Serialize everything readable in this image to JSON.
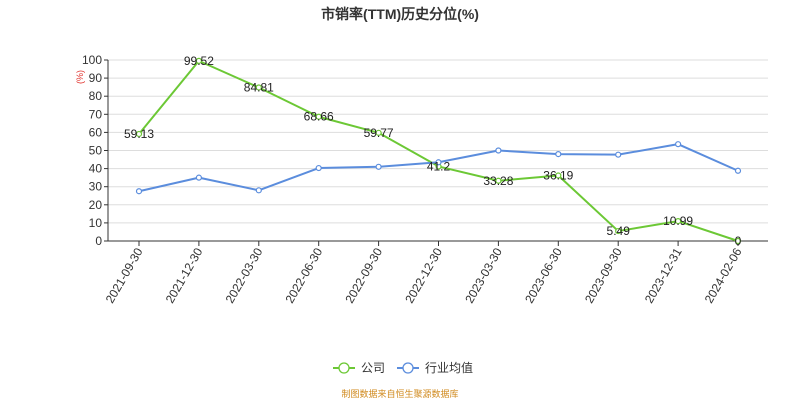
{
  "chart_data": {
    "type": "line",
    "title": "市销率(TTM)历史分位(%)",
    "y_unit": "(%)",
    "ylim": [
      0,
      100
    ],
    "y_ticks": [
      0,
      10,
      20,
      30,
      40,
      50,
      60,
      70,
      80,
      90,
      100
    ],
    "grid": true,
    "legend_position": "bottom",
    "categories": [
      "2021-09-30",
      "2021-12-30",
      "2022-03-30",
      "2022-06-30",
      "2022-09-30",
      "2022-12-30",
      "2023-03-30",
      "2023-06-30",
      "2023-09-30",
      "2023-12-31",
      "2024-02-06"
    ],
    "series": [
      {
        "name": "公司",
        "color": "#6cc835",
        "values": [
          59.13,
          99.52,
          84.81,
          68.66,
          59.77,
          41.2,
          33.28,
          36.19,
          5.49,
          10.99,
          0
        ],
        "labels": [
          "59.13",
          "99.52",
          "84.81",
          "68.66",
          "59.77",
          "41.2",
          "33.28",
          "36.19",
          "5.49",
          "10.99",
          "0"
        ]
      },
      {
        "name": "行业均值",
        "color": "#5b8ddd",
        "values": [
          27.5,
          35,
          28,
          40.3,
          41,
          43.5,
          50,
          48,
          47.7,
          53.5,
          38.8
        ]
      }
    ],
    "source": "制图数据来自恒生聚源数据库"
  }
}
